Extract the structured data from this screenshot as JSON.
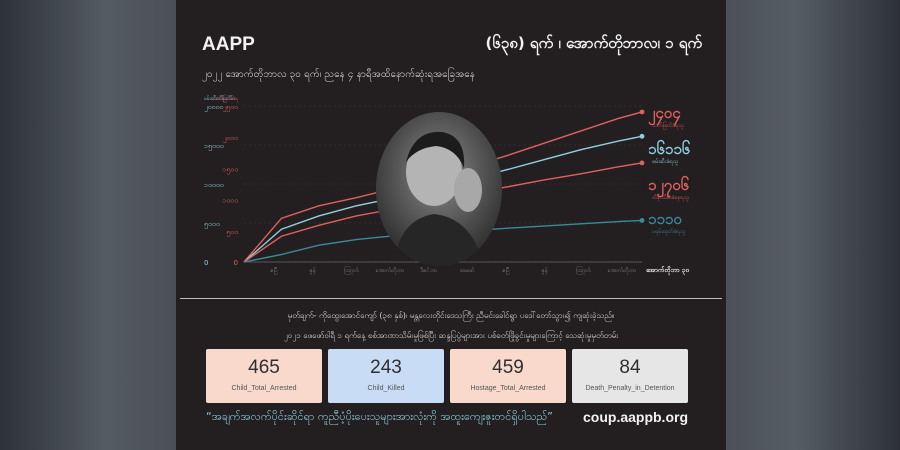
{
  "header": {
    "brand": "AAPP",
    "headline": "(၆၃၈) ရက် ၊ အောက်တိုဘာလ၊ ၁ ရက်",
    "subtitle": "၂၀၂၂ အောက်တိုဘာလ ၃၀ ရက်၊ ညနေ ၄ နာရီအထိနောက်ဆုံးရအခြေအနေ"
  },
  "chart_data": {
    "type": "line",
    "x": [
      0,
      60,
      120,
      180,
      240,
      300,
      360,
      420,
      480,
      540,
      600,
      638
    ],
    "x_tick_labels": [
      "ဧပြီ",
      "ဇွန်",
      "ဩဂုတ်",
      "အောက်တိုဘာ",
      "ဒီဇင်ဘာ",
      "ဖေဖော်",
      "ဧပြီ",
      "ဇွန်",
      "ဩဂုတ်",
      "အောက်တိုဘာ"
    ],
    "x_end_label": "အောက်တိုဘာ ၃၀",
    "y_left_ticks": [
      "၂၀၀၀၀",
      "၁၅၀၀၀",
      "၁၀၀၀၀",
      "၅၀၀၀",
      "0"
    ],
    "y_left_axis_label": "ဖမ်းဆီးထိန်းသိမ်း",
    "y_right_ticks": [
      "၂၅၀၀",
      "၂၀၀၀",
      "၁၅၀၀",
      "၁၀၀၀",
      "၅၀၀",
      "0"
    ],
    "y_right_axis_label": "သတ်ဖြတ်ခံရ",
    "series": [
      {
        "name": "သတ်ဖြတ်ခံရသူ",
        "color": "#e06060",
        "end_label": "၂၄၀၄",
        "values": [
          0,
          700,
          900,
          1030,
          1180,
          1330,
          1520,
          1700,
          1900,
          2100,
          2300,
          2404
        ]
      },
      {
        "name": "ဖမ်းဆီးခံရသူ",
        "color": "#8fd0e0",
        "end_label": "၁၆၁၁၆",
        "values": [
          0,
          4200,
          5900,
          7200,
          8200,
          9200,
          10600,
          11800,
          13100,
          14400,
          15500,
          16116
        ]
      },
      {
        "name": "ထိန်းသိမ်းခံနေရသူ",
        "color": "#e06060",
        "end_label": "၁၂၇၀၆",
        "values": [
          0,
          3300,
          4700,
          5900,
          6800,
          7600,
          8700,
          9600,
          10500,
          11300,
          12200,
          12706
        ]
      },
      {
        "name": "ဝရမ်းထုတ်ခံရသူ",
        "color": "#3a8a9a",
        "end_label": "၁၁၁၀",
        "values": [
          0,
          200,
          450,
          600,
          700,
          760,
          830,
          900,
          960,
          1020,
          1080,
          1110
        ]
      }
    ]
  },
  "notes": {
    "line1": "မှတ်ချက်- ကိုထွေးအောင်ကျော် (၃၈ နှစ်)၊ မန္တလေးတိုင်းဒေသကြီး ညီမင်းခေါင်ရွာ ပဒေါ်တော်သွား၍ ကျဆုံးခဲ့သည်။",
    "line2": "၂၀၂၁ ဖေဖော်ဝါရီ ၁ ရက်နေ့ စစ်အာဏာသိမ်းမှုဖြစ်ပြီး ဆန္ဒပြပွဲများအား ပစ်ခတ်ဖြိုခွင်းမှုများကြောင့် သေဆုံးမှုမှတ်တမ်း"
  },
  "stats": [
    {
      "value": "465",
      "label": "Child_Total_Arrested",
      "color": "#f8d9cb"
    },
    {
      "value": "243",
      "label": "Child_Killed",
      "color": "#c9dcf6"
    },
    {
      "value": "459",
      "label": "Hostage_Total_Arrested",
      "color": "#f8d9cb"
    },
    {
      "value": "84",
      "label": "Death_Penalty_in_Detention",
      "color": "#e6e6e6"
    }
  ],
  "footer": {
    "quote": "“အချက်အလက်ပိုင်းဆိုင်ရာ ကူညီပံ့ပိုးပေးသူများအားလုံးကို အထူးကျေးဇူးတင်ရှိပါသည်”",
    "website": "coup.aappb.org"
  }
}
